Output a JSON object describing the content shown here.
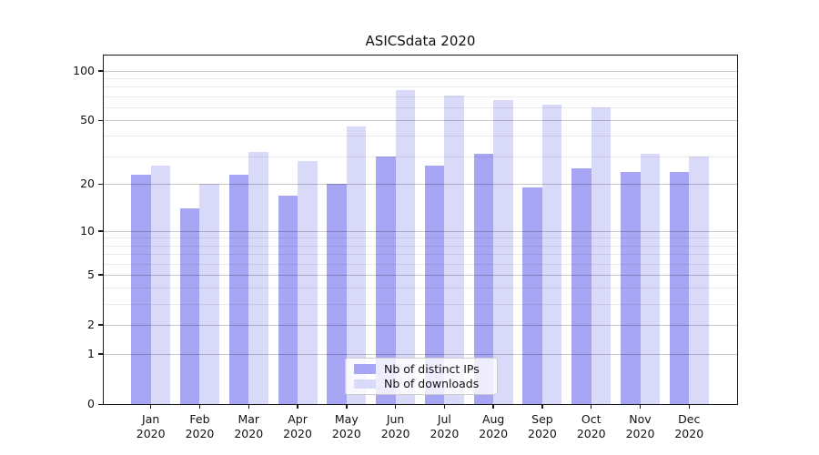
{
  "chart_data": {
    "type": "bar",
    "title": "ASICSdata 2020",
    "months": [
      "Jan",
      "Feb",
      "Mar",
      "Apr",
      "May",
      "Jun",
      "Jul",
      "Aug",
      "Sep",
      "Oct",
      "Nov",
      "Dec"
    ],
    "year": "2020",
    "series": [
      {
        "name": "Nb of distinct IPs",
        "color": "#a6a6f5",
        "values": [
          23,
          14,
          23,
          17,
          20,
          30,
          26,
          31,
          19,
          25,
          24,
          24
        ]
      },
      {
        "name": "Nb of downloads",
        "color": "#d9d9fa",
        "values": [
          26,
          20,
          32,
          28,
          46,
          76,
          71,
          66,
          62,
          60,
          31,
          30
        ]
      }
    ],
    "yticks": [
      0,
      1,
      2,
      5,
      10,
      20,
      50,
      100
    ],
    "minor_gridlines": [
      3,
      4,
      6,
      7,
      8,
      9,
      30,
      40,
      60,
      70,
      80,
      90
    ],
    "scale": "log1p",
    "ylim": [
      0,
      124
    ],
    "xlabel": "",
    "ylabel": "",
    "grid": true,
    "legend_position": "lower center"
  },
  "colors": {
    "bar_dark": "#a6a6f5",
    "bar_light": "#d9d9fa",
    "spine": "#1a1a1a",
    "major_grid": "#c6c6c6",
    "minor_grid": "#ebebeb",
    "background": "#ffffff"
  }
}
